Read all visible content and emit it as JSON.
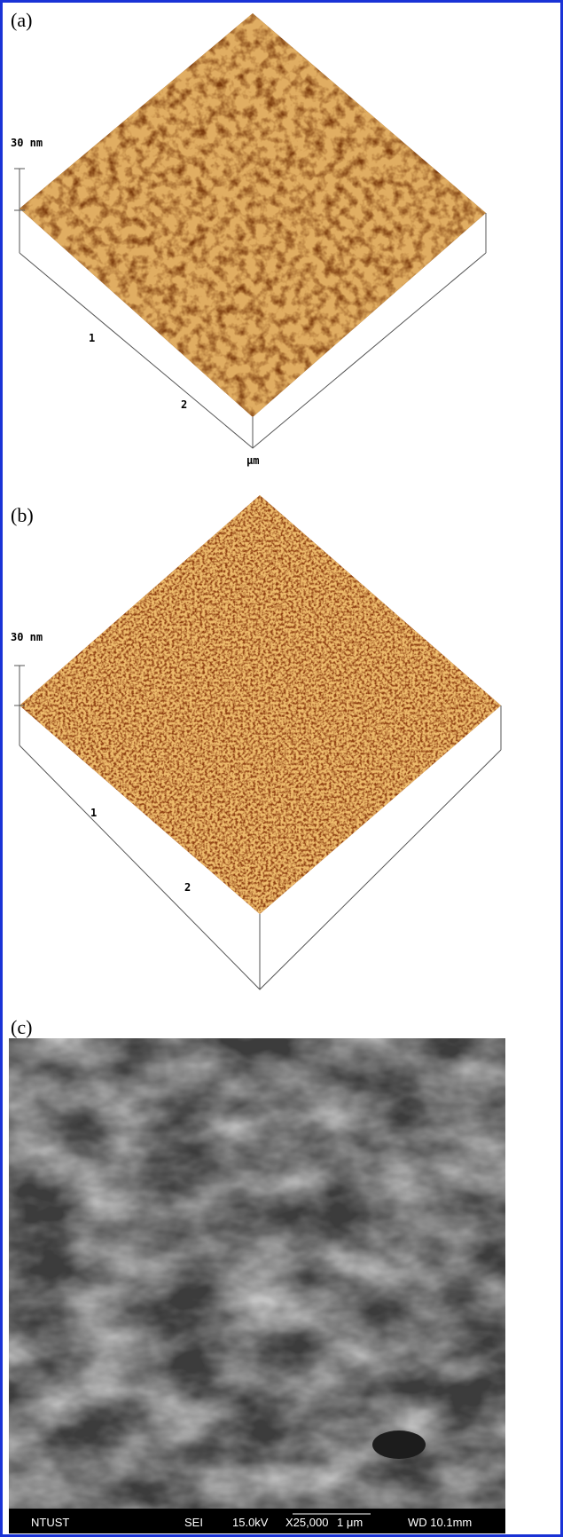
{
  "panels": [
    {
      "label": "(a)",
      "z_label": "30 nm",
      "ticks": [
        "1",
        "2"
      ],
      "unit": "μm"
    },
    {
      "label": "(b)",
      "z_label": "30 nm",
      "ticks": [
        "1",
        "2"
      ]
    },
    {
      "label": "(c)",
      "info_bar": [
        "NTUST",
        "SEI",
        "15.0kV",
        "X25,000",
        "1 μm",
        "WD 10.1mm"
      ]
    }
  ]
}
